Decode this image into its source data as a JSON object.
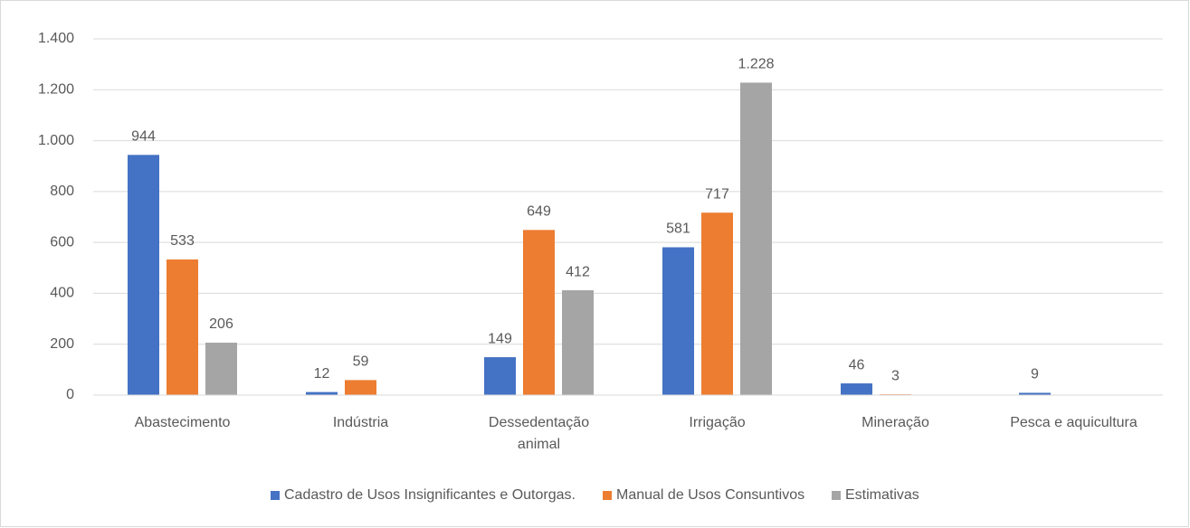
{
  "chart_data": {
    "type": "bar",
    "categories": [
      "Abastecimento",
      "Indústria",
      "Dessedentação animal",
      "Irrigação",
      "Mineração",
      "Pesca e aquicultura"
    ],
    "series": [
      {
        "name": "Cadastro de Usos Insignificantes e Outorgas.",
        "color": "#4472c4",
        "values": [
          944,
          12,
          149,
          581,
          46,
          9
        ]
      },
      {
        "name": "Manual de Usos Consuntivos",
        "color": "#ed7d31",
        "values": [
          533,
          59,
          649,
          717,
          3,
          null
        ]
      },
      {
        "name": "Estimativas",
        "color": "#a5a5a5",
        "values": [
          206,
          null,
          412,
          1228,
          null,
          null
        ],
        "value_labels": [
          "206",
          null,
          "412",
          "1.228",
          null,
          null
        ]
      }
    ],
    "ylim": [
      0,
      1400
    ],
    "yticks": [
      0,
      200,
      400,
      600,
      800,
      {
        "value": 1000,
        "label": "1.000"
      },
      {
        "value": 1200,
        "label": "1.200"
      },
      {
        "value": 1400,
        "label": "1.400"
      }
    ],
    "grid": true,
    "legend": "bottom"
  }
}
